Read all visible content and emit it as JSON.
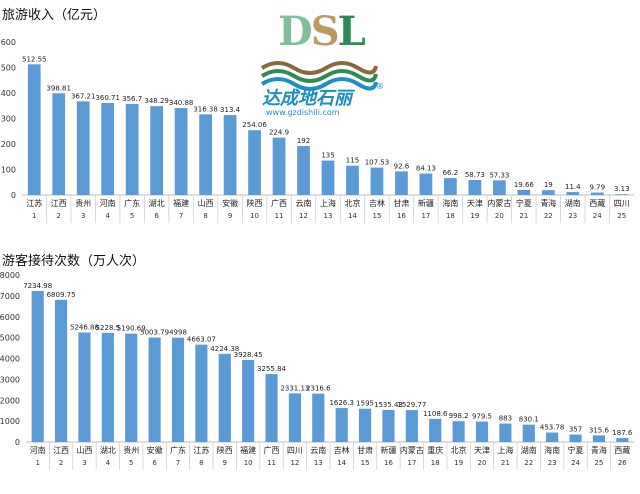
{
  "chart_data": [
    {
      "type": "bar",
      "title": "旅游收入（亿元）",
      "ylim": [
        0,
        600
      ],
      "yticks": [
        0,
        100,
        200,
        300,
        400,
        500,
        600
      ],
      "categories": [
        "江苏",
        "江西",
        "贵州",
        "河南",
        "广东",
        "湖北",
        "福建",
        "山西",
        "安徽",
        "陕西",
        "广西",
        "云南",
        "上海",
        "北京",
        "吉林",
        "甘肃",
        "新疆",
        "海南",
        "天津",
        "内蒙古",
        "宁夏",
        "青海",
        "湖南",
        "西藏",
        "四川"
      ],
      "ranks": [
        "1",
        "2",
        "3",
        "4",
        "5",
        "6",
        "7",
        "8",
        "9",
        "10",
        "11",
        "12",
        "13",
        "14",
        "15",
        "16",
        "17",
        "18",
        "19",
        "20",
        "21",
        "22",
        "23",
        "24",
        "25"
      ],
      "values": [
        512.55,
        398.81,
        367.21,
        360.71,
        356.7,
        348.29,
        340.88,
        316.38,
        313.4,
        254.06,
        224.9,
        192,
        135,
        115,
        107.53,
        92.6,
        84.13,
        66.2,
        58.73,
        57.33,
        19.66,
        19,
        11.4,
        9.79,
        3.13
      ],
      "labels": [
        "512.55",
        "398.81",
        "367.21",
        "360.71",
        "356.7",
        "348.29",
        "340.88",
        "316.38",
        "313.4",
        "254.06",
        "224.9",
        "192",
        "135",
        "115",
        "107.53",
        "92.6",
        "84.13",
        "66.2",
        "58.73",
        "57.33",
        "19.66",
        "19",
        "11.4",
        "9.79",
        "3.13"
      ],
      "grid": false,
      "legend": "none",
      "color": "#5b9bd5"
    },
    {
      "type": "bar",
      "title": "游客接待次数（万人次）",
      "ylim": [
        0,
        8000
      ],
      "yticks": [
        0,
        1000,
        2000,
        3000,
        4000,
        5000,
        6000,
        7000,
        8000
      ],
      "categories": [
        "河南",
        "江西",
        "山西",
        "湖北",
        "贵州",
        "安徽",
        "广东",
        "江苏",
        "陕西",
        "福建",
        "广西",
        "四川",
        "云南",
        "吉林",
        "甘肃",
        "新疆",
        "内蒙古",
        "重庆",
        "北京",
        "天津",
        "上海",
        "湖南",
        "海南",
        "宁夏",
        "青海",
        "西藏"
      ],
      "ranks": [
        "1",
        "2",
        "3",
        "4",
        "5",
        "6",
        "7",
        "8",
        "9",
        "10",
        "11",
        "12",
        "13",
        "14",
        "15",
        "16",
        "17",
        "18",
        "19",
        "20",
        "21",
        "22",
        "23",
        "24",
        "25",
        "26"
      ],
      "values": [
        7234.98,
        6809.75,
        5246.88,
        5228.5,
        5190.69,
        5003.79,
        4998,
        4663.07,
        4224.38,
        3928.45,
        3255.84,
        2331.13,
        2316.6,
        1626.3,
        1595,
        1535.43,
        1529.77,
        1108.6,
        998.2,
        979.5,
        883,
        830.1,
        453.78,
        357,
        315.6,
        187.6
      ],
      "labels": [
        "7234.98",
        "6809.75",
        "5246.88",
        "5228.5",
        "5190.69",
        "5003.79",
        "4998",
        "4663.07",
        "4224.38",
        "3928.45",
        "3255.84",
        "2331.13",
        "2316.6",
        "1626.3",
        "1595",
        "1535.43",
        "1529.77",
        "1108.6",
        "998.2",
        "979.5",
        "883",
        "830.1",
        "453.78",
        "357",
        "315.6",
        "187.6"
      ],
      "grid": false,
      "legend": "none",
      "color": "#5b9bd5"
    }
  ],
  "logo": {
    "letter_d": "D",
    "letter_s": "S",
    "letter_l": "L",
    "brand": "达成地石丽",
    "registered": "®",
    "url": "www.gzdishili.com"
  }
}
